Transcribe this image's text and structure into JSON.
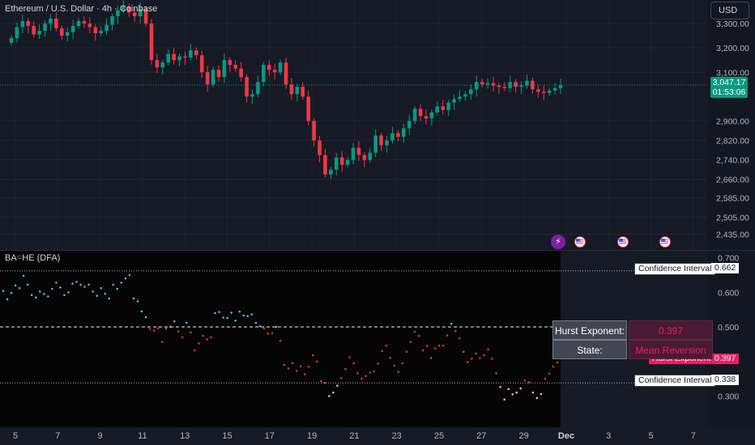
{
  "header": {
    "symbol_title": "Ethereum / U.S. Dollar · 4h · Coinbase",
    "currency_button": "USD"
  },
  "price_scale": {
    "ticks": [
      "3,300.00",
      "3,200.00",
      "3,100.00",
      "2,900.00",
      "2,820.00",
      "2,740.00",
      "2,660.00",
      "2,585.00",
      "2,505.00",
      "2,435.00"
    ],
    "last_price": "3,047.17",
    "countdown": "01:53:06"
  },
  "indicator": {
    "title": "BA⍨HE (DFA)",
    "scale_ticks": [
      "0.700",
      "0.600",
      "0.500",
      "0.300"
    ],
    "upper_ci_label": "Confidence Interval",
    "upper_ci_value": "0.662",
    "lower_ci_label": "Confidence Interval",
    "lower_ci_value": "0.338",
    "hurst_tag_label": "Hurst Exponent",
    "hurst_tag_value": "0.397",
    "table": {
      "hurst_key": "Hurst Exponent:",
      "hurst_value": "0.397",
      "state_key": "State:",
      "state_value": "Mean Reversion"
    }
  },
  "time_axis": {
    "labels": [
      "5",
      "7",
      "9",
      "11",
      "13",
      "15",
      "17",
      "19",
      "21",
      "23",
      "25",
      "27",
      "29",
      "Dec",
      "3",
      "5",
      "7"
    ]
  },
  "events": {
    "flash_icon": "flash-icon",
    "flag_icons": [
      "us-flag-icon",
      "us-flag-icon",
      "us-flag-icon"
    ]
  },
  "colors": {
    "up": "#089981",
    "down": "#f23645",
    "hurst_high": "#5ec8e6",
    "hurst_low": "#f23645",
    "hurst_extreme": "#ffeb3b",
    "accent_pink": "#e91e63"
  },
  "chart_data": [
    {
      "type": "candlestick",
      "title": "Ethereum / U.S. Dollar · 4h · Coinbase",
      "ylim": [
        2400,
        3370
      ],
      "last_price": 3047.17,
      "series": [
        {
          "name": "",
          "close": [
            3240,
            3285,
            3310,
            3290,
            3255,
            3270,
            3300,
            3320,
            3280,
            3250,
            3265,
            3290,
            3310,
            3300,
            3285,
            3260,
            3270,
            3295,
            3330,
            3355,
            3370,
            3345,
            3330,
            3360,
            3300,
            3150,
            3120,
            3140,
            3175,
            3150,
            3165,
            3160,
            3190,
            3170,
            3100,
            3050,
            3110,
            3080,
            3150,
            3130,
            3115,
            3080,
            3000,
            3010,
            3060,
            3130,
            3110,
            3100,
            3140,
            3050,
            3010,
            3040,
            3000,
            2900,
            2820,
            2760,
            2680,
            2700,
            2750,
            2720,
            2740,
            2790,
            2760,
            2740,
            2770,
            2840,
            2800,
            2820,
            2850,
            2835,
            2870,
            2900,
            2950,
            2920,
            2910,
            2935,
            2960,
            2945,
            2975,
            2990,
            3000,
            3010,
            3030,
            3060,
            3050,
            3055,
            3045,
            3040,
            3035,
            3060,
            3040,
            3045,
            3065,
            3030,
            3020,
            3015,
            3025,
            3035,
            3047
          ]
        }
      ]
    },
    {
      "type": "scatter",
      "title": "BA⍨HE (DFA)",
      "ylim": [
        0.21,
        0.72
      ],
      "confidence_upper": 0.662,
      "confidence_lower": 0.338,
      "center": 0.5,
      "latest": 0.397,
      "series": [
        {
          "name": "",
          "values": [
            0.604,
            0.58,
            0.598,
            0.62,
            0.612,
            0.648,
            0.622,
            0.592,
            0.585,
            0.602,
            0.595,
            0.588,
            0.61,
            0.628,
            0.614,
            0.592,
            0.6,
            0.625,
            0.63,
            0.622,
            0.616,
            0.622,
            0.602,
            0.59,
            0.612,
            0.596,
            0.582,
            0.622,
            0.61,
            0.628,
            0.64,
            0.65,
            0.582,
            0.574,
            0.545,
            0.528,
            0.494,
            0.489,
            0.496,
            0.456,
            0.495,
            0.5,
            0.516,
            0.487,
            0.47,
            0.512,
            0.484,
            0.432,
            0.452,
            0.474,
            0.464,
            0.47,
            0.54,
            0.543,
            0.527,
            0.526,
            0.541,
            0.518,
            0.544,
            0.533,
            0.531,
            0.536,
            0.512,
            0.502,
            0.496,
            0.48,
            0.482,
            0.5,
            0.46,
            0.39,
            0.38,
            0.395,
            0.373,
            0.386,
            0.363,
            0.385,
            0.418,
            0.4,
            0.343,
            0.338,
            0.3,
            0.31,
            0.33,
            0.352,
            0.378,
            0.412,
            0.395,
            0.366,
            0.35,
            0.358,
            0.368,
            0.372,
            0.394,
            0.43,
            0.446,
            0.41,
            0.388,
            0.37,
            0.395,
            0.428,
            0.456,
            0.486,
            0.474,
            0.432,
            0.445,
            0.41,
            0.438,
            0.446,
            0.446,
            0.475,
            0.509,
            0.488,
            0.467,
            0.428,
            0.398,
            0.408,
            0.423,
            0.41,
            0.418,
            0.435,
            0.408,
            0.366,
            0.326,
            0.29,
            0.32,
            0.305,
            0.31,
            0.322,
            0.345,
            0.34,
            0.31,
            0.294,
            0.306,
            0.35,
            0.365,
            0.385,
            0.397
          ]
        }
      ]
    }
  ]
}
